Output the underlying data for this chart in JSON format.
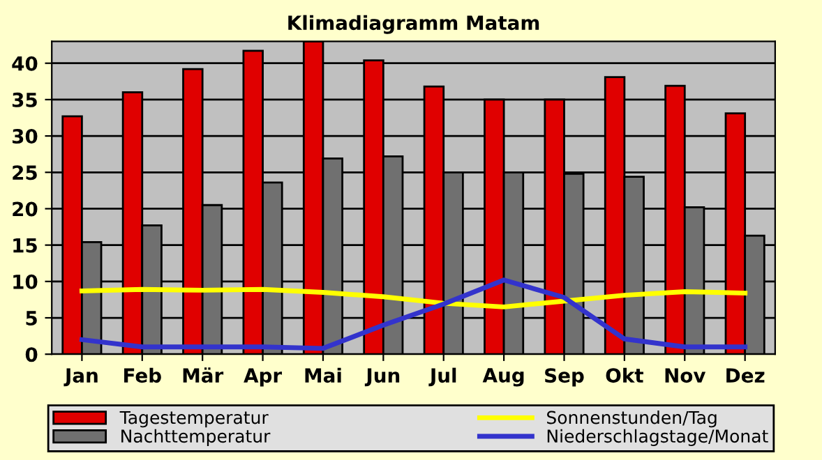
{
  "chart_data": {
    "type": "bar",
    "title": "Klimadiagramm Matam",
    "categories": [
      "Jan",
      "Feb",
      "Mär",
      "Apr",
      "Mai",
      "Jun",
      "Jul",
      "Aug",
      "Sep",
      "Okt",
      "Nov",
      "Dez"
    ],
    "series": [
      {
        "name": "Tagestemperatur",
        "color": "#e00000",
        "values": [
          32.7,
          36,
          39.2,
          41.7,
          43,
          40.4,
          36.8,
          35,
          35,
          38.1,
          36.9,
          33.1
        ]
      },
      {
        "name": "Nachttemperatur",
        "color": "#707070",
        "values": [
          15.4,
          17.7,
          20.5,
          23.6,
          26.9,
          27.2,
          25,
          25,
          24.8,
          24.4,
          20.2,
          16.3
        ]
      },
      {
        "name": "Sonnenstunden/Tag",
        "type": "line",
        "color": "#ffff00",
        "values": [
          8.7,
          8.9,
          8.8,
          8.9,
          8.5,
          7.9,
          7,
          6.5,
          7.3,
          8.1,
          8.6,
          8.4
        ]
      },
      {
        "name": "Niederschlagstage/Monat",
        "type": "line",
        "color": "#3333cc",
        "values": [
          2,
          1,
          1,
          1,
          0.8,
          4,
          6.9,
          10.2,
          7.8,
          2.1,
          1,
          1
        ]
      }
    ],
    "ylim": [
      0,
      43
    ],
    "yticks": [
      0,
      5,
      10,
      15,
      20,
      25,
      30,
      35,
      40
    ],
    "grid": "y",
    "legend": "bottom"
  }
}
